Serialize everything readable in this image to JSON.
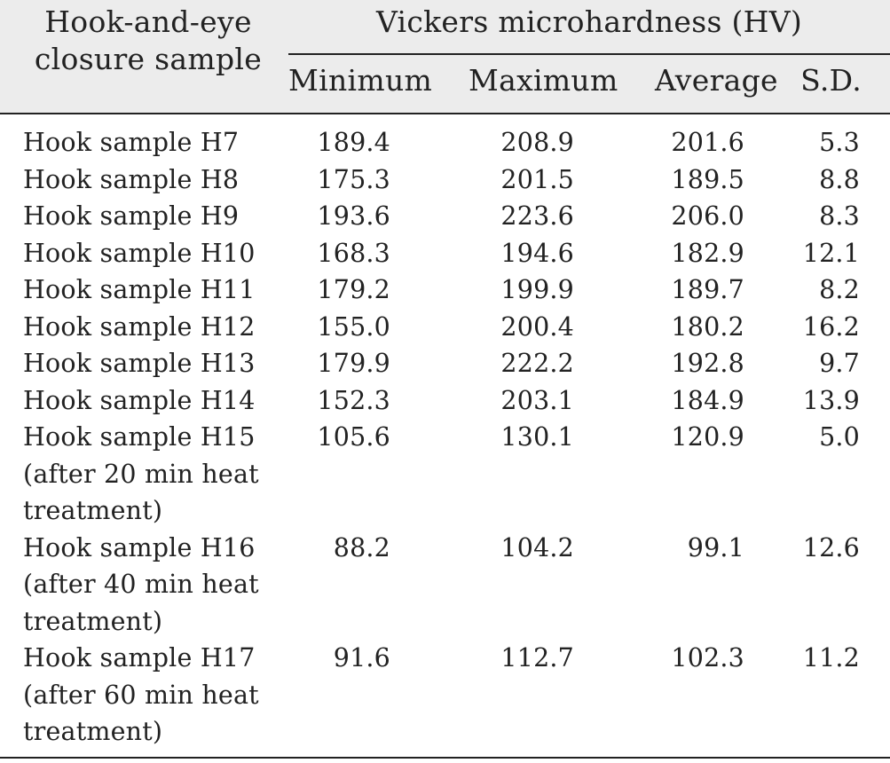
{
  "table": {
    "header": {
      "sample_col": "Hook-and-eye\nclosure sample",
      "group": "Vickers microhardness (HV)",
      "columns": [
        "Minimum",
        "Maximum",
        "Average",
        "S.D."
      ]
    },
    "rows": [
      {
        "label": "Hook sample H7",
        "min": "189.4",
        "max": "208.9",
        "avg": "201.6",
        "sd": "5.3"
      },
      {
        "label": "Hook sample H8",
        "min": "175.3",
        "max": "201.5",
        "avg": "189.5",
        "sd": "8.8"
      },
      {
        "label": "Hook sample H9",
        "min": "193.6",
        "max": "223.6",
        "avg": "206.0",
        "sd": "8.3"
      },
      {
        "label": "Hook sample H10",
        "min": "168.3",
        "max": "194.6",
        "avg": "182.9",
        "sd": "12.1"
      },
      {
        "label": "Hook sample H11",
        "min": "179.2",
        "max": "199.9",
        "avg": "189.7",
        "sd": "8.2"
      },
      {
        "label": "Hook sample H12",
        "min": "155.0",
        "max": "200.4",
        "avg": "180.2",
        "sd": "16.2"
      },
      {
        "label": "Hook sample H13",
        "min": "179.9",
        "max": "222.2",
        "avg": "192.8",
        "sd": "9.7"
      },
      {
        "label": "Hook sample H14",
        "min": "152.3",
        "max": "203.1",
        "avg": "184.9",
        "sd": "13.9"
      },
      {
        "label": "Hook sample H15\n(after 20 min heat\ntreatment)",
        "min": "105.6",
        "max": "130.1",
        "avg": "120.9",
        "sd": "5.0"
      },
      {
        "label": "Hook sample H16\n(after 40 min heat\ntreatment)",
        "min": "88.2",
        "max": "104.2",
        "avg": "99.1",
        "sd": "12.6"
      },
      {
        "label": "Hook sample H17\n(after 60 min heat\ntreatment)",
        "min": "91.6",
        "max": "112.7",
        "avg": "102.3",
        "sd": "11.2"
      }
    ]
  }
}
